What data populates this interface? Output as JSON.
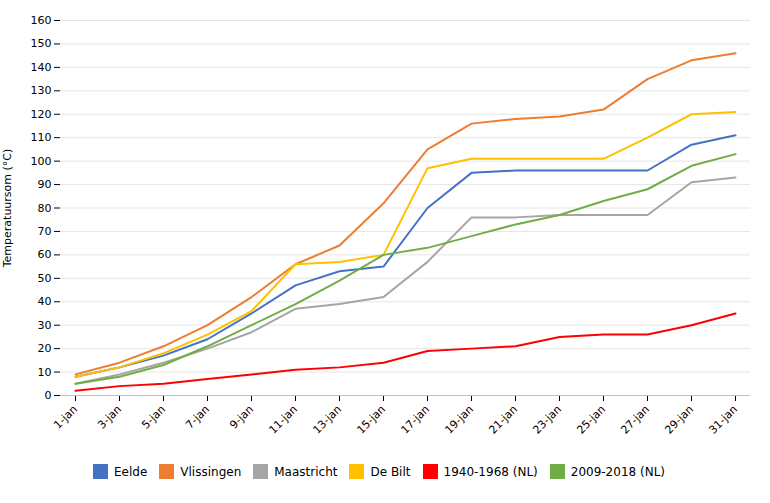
{
  "chart_data": {
    "type": "line",
    "ylabel": "Temperatuursom (°C)",
    "categories": [
      "1-jan",
      "3-jan",
      "5-jan",
      "7-jan",
      "9-jan",
      "11-jan",
      "13-jan",
      "15-jan",
      "17-jan",
      "19-jan",
      "21-jan",
      "23-jan",
      "25-jan",
      "27-jan",
      "29-jan",
      "31-jan"
    ],
    "ylim": [
      0,
      160
    ],
    "yticks": [
      0,
      10,
      20,
      30,
      40,
      50,
      60,
      70,
      80,
      90,
      100,
      110,
      120,
      130,
      140,
      150,
      160
    ],
    "grid": true,
    "legend": "bottom",
    "series": [
      {
        "name": "Eelde",
        "color": "#4472C4",
        "values": [
          8,
          12,
          17,
          24,
          35,
          47,
          53,
          55,
          80,
          95,
          96,
          96,
          96,
          96,
          107,
          111
        ]
      },
      {
        "name": "Vlissingen",
        "color": "#ED7D31",
        "values": [
          9,
          14,
          21,
          30,
          42,
          56,
          64,
          82,
          105,
          116,
          118,
          119,
          122,
          135,
          143,
          146
        ]
      },
      {
        "name": "Maastricht",
        "color": "#A5A5A5",
        "values": [
          5,
          9,
          14,
          20,
          27,
          37,
          39,
          42,
          57,
          76,
          76,
          77,
          77,
          77,
          91,
          93
        ]
      },
      {
        "name": "De Bilt",
        "color": "#FFC000",
        "values": [
          8,
          12,
          18,
          26,
          36,
          56,
          57,
          60,
          97,
          101,
          101,
          101,
          101,
          110,
          120,
          121
        ]
      },
      {
        "name": "1940-1968 (NL)",
        "color": "#FF0000",
        "values": [
          2,
          4,
          5,
          7,
          9,
          11,
          12,
          14,
          19,
          20,
          21,
          25,
          26,
          26,
          30,
          35
        ]
      },
      {
        "name": "2009-2018 (NL)",
        "color": "#70AD47",
        "values": [
          5,
          8,
          13,
          21,
          30,
          39,
          49,
          60,
          63,
          68,
          73,
          77,
          83,
          88,
          98,
          103
        ]
      }
    ]
  }
}
